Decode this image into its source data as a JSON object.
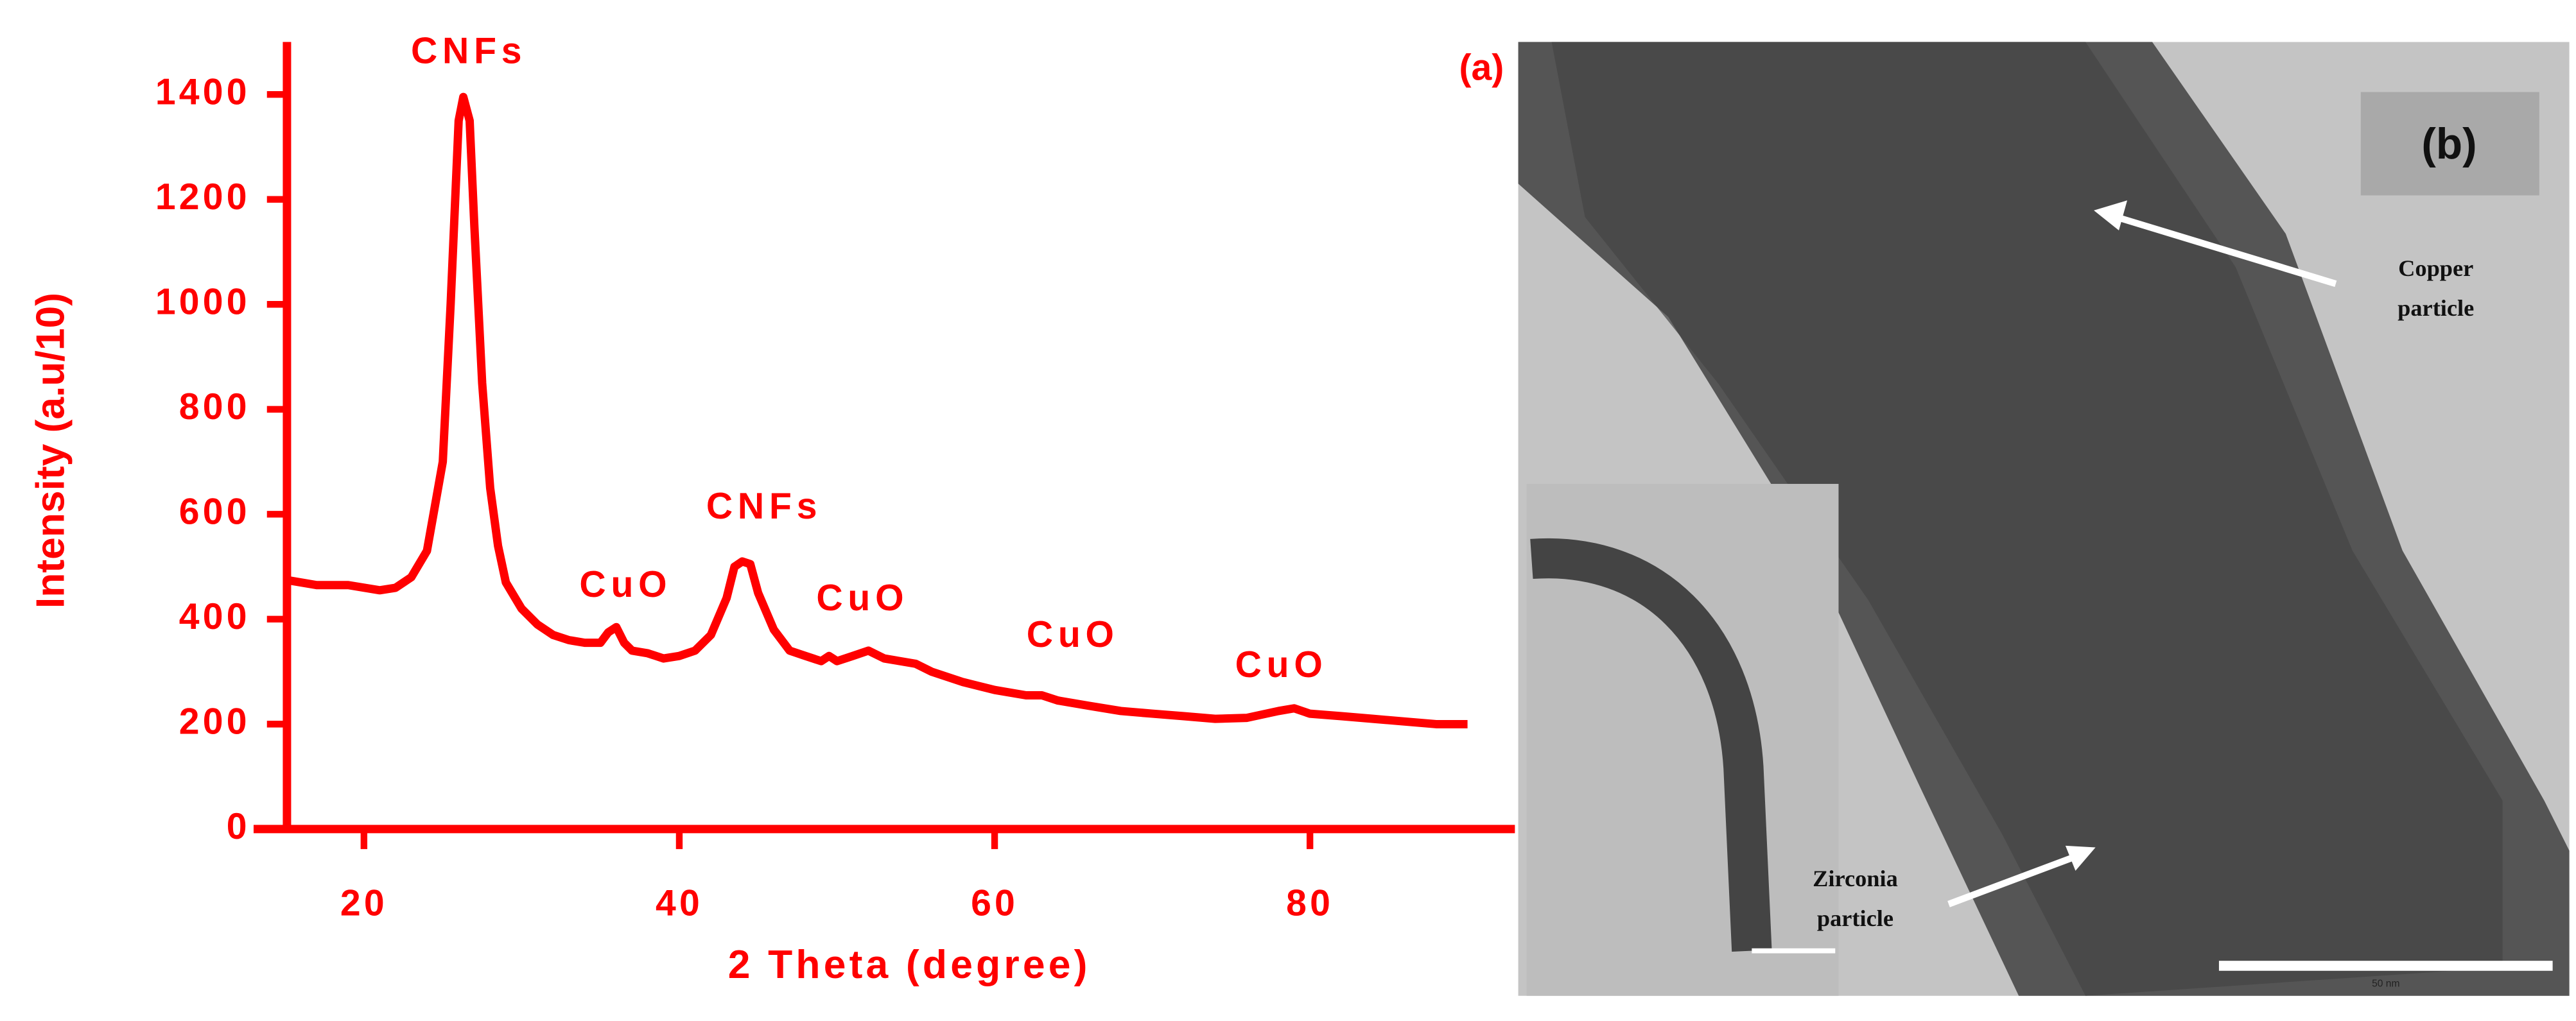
{
  "chart_data": {
    "type": "line",
    "xlabel": "2 Theta (degree)",
    "ylabel": "Intensity (a.u/10)",
    "label": "(a)",
    "annotations": [
      "CNFs",
      "CuO",
      "CNFs",
      "CuO",
      "CuO",
      "CuO"
    ],
    "x": [
      15,
      17,
      19,
      21,
      22,
      23,
      24,
      25,
      25.5,
      26,
      26.3,
      26.7,
      27,
      27.5,
      28,
      28.5,
      29,
      30,
      31,
      32,
      33,
      34,
      35,
      35.5,
      36,
      36.5,
      37,
      38,
      39,
      40,
      41,
      42,
      43,
      43.5,
      44,
      44.5,
      45,
      46,
      47,
      48,
      49,
      49.5,
      50,
      51,
      52,
      53,
      54,
      55,
      56,
      58,
      60,
      62,
      63,
      64,
      66,
      68,
      70,
      72,
      74,
      76,
      78,
      79,
      80,
      82,
      84,
      86,
      88,
      90
    ],
    "values": [
      475,
      465,
      465,
      455,
      460,
      480,
      530,
      700,
      1000,
      1350,
      1395,
      1350,
      1150,
      850,
      650,
      540,
      470,
      420,
      390,
      370,
      360,
      355,
      355,
      375,
      385,
      355,
      340,
      335,
      325,
      330,
      340,
      370,
      440,
      500,
      510,
      505,
      450,
      380,
      340,
      330,
      320,
      330,
      320,
      330,
      340,
      325,
      320,
      315,
      300,
      280,
      265,
      255,
      255,
      245,
      235,
      225,
      220,
      215,
      210,
      212,
      225,
      230,
      220,
      215,
      210,
      205,
      200,
      200
    ],
    "color": "#ff0000",
    "xlim": [
      13,
      93
    ],
    "ylim": [
      0,
      1500
    ],
    "xticks": [
      20,
      40,
      60,
      80
    ],
    "yticks": [
      0,
      200,
      400,
      600,
      800,
      1000,
      1200,
      1400
    ]
  },
  "image": {
    "label": "(b)",
    "copper": [
      "Copper",
      "particle"
    ],
    "zirconia": [
      "Zirconia",
      "particle"
    ],
    "scale": "50 nm"
  }
}
